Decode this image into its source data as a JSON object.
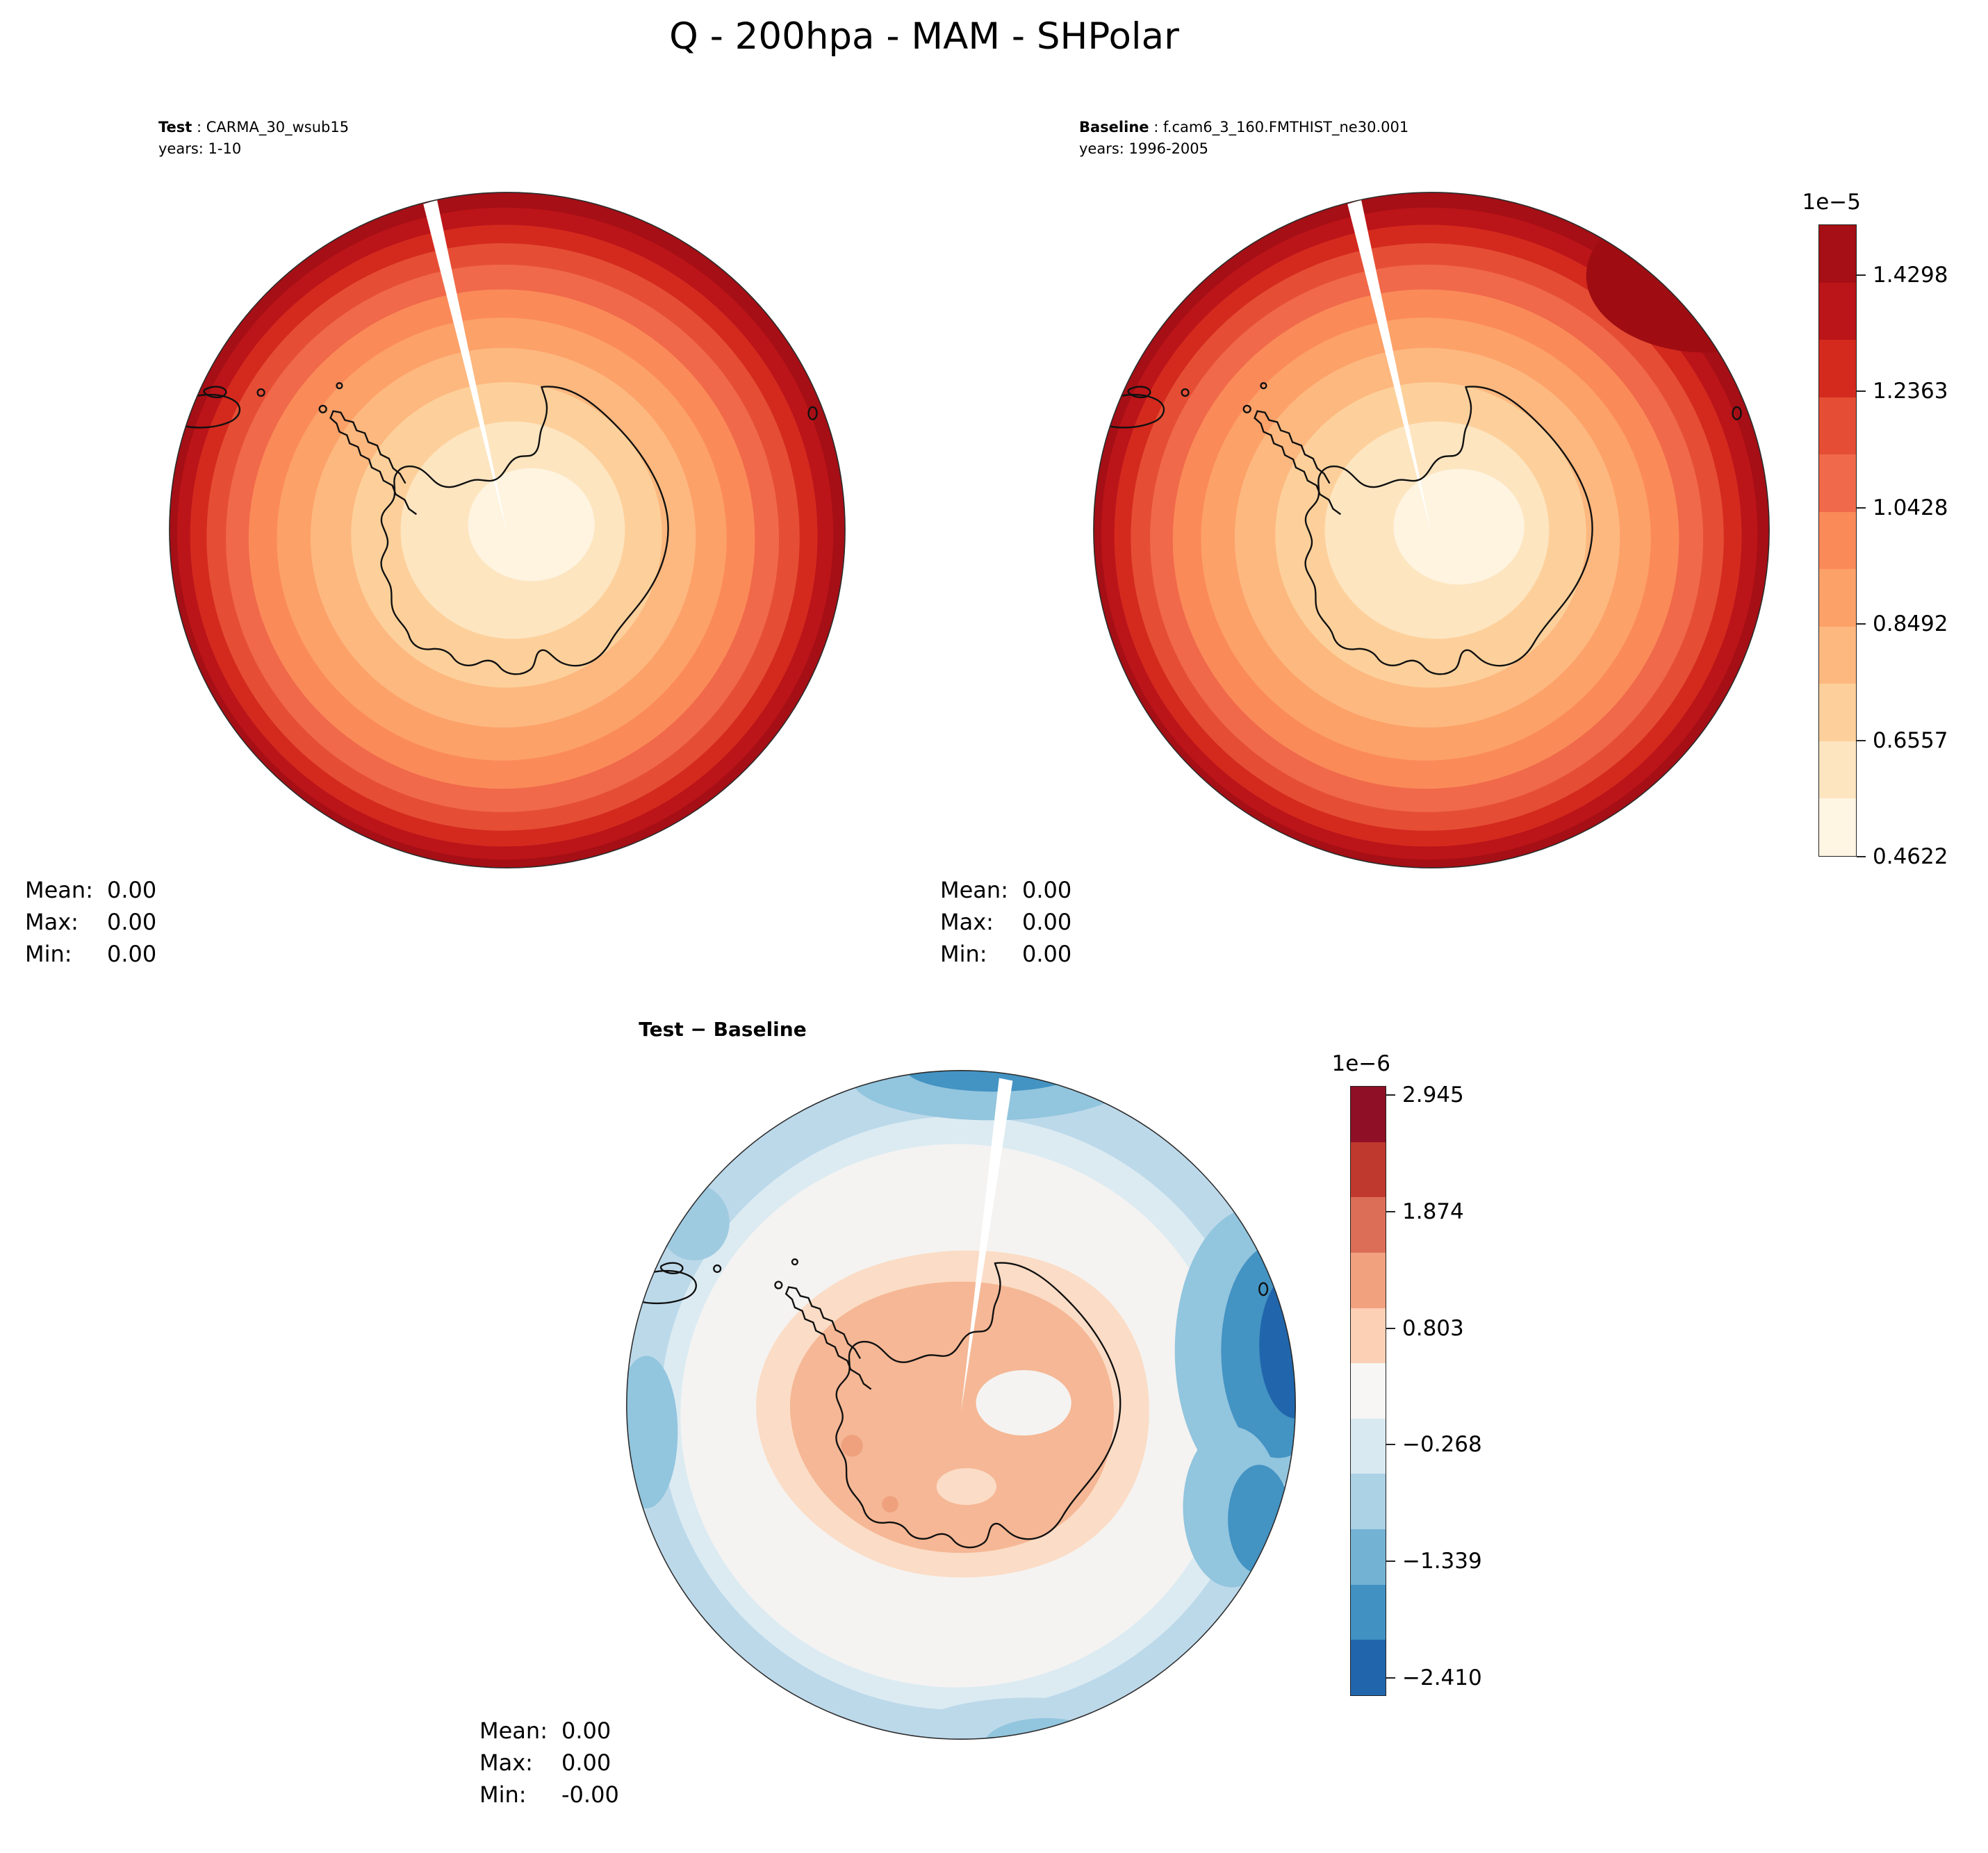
{
  "suptitle": "Q - 200hpa - MAM - SHPolar",
  "panels": {
    "test": {
      "name": "Test",
      "case": " : CARMA_30_wsub15",
      "years": "years: 1-10",
      "stats": [
        [
          "Mean:",
          "0.00"
        ],
        [
          "Max:",
          "0.00"
        ],
        [
          "Min:",
          "0.00"
        ]
      ]
    },
    "baseline": {
      "name": "Baseline",
      "case": " : f.cam6_3_160.FMTHIST_ne30.001",
      "years": "years: 1996-2005",
      "stats": [
        [
          "Mean:",
          "0.00"
        ],
        [
          "Max:",
          "0.00"
        ],
        [
          "Min:",
          "0.00"
        ]
      ]
    },
    "diff": {
      "title": "Test − Baseline",
      "stats": [
        [
          "Mean:",
          "0.00"
        ],
        [
          "Max:",
          "0.00"
        ],
        [
          "Min:",
          "-0.00"
        ]
      ]
    }
  },
  "colorbars": {
    "main": {
      "exponent": "1e−5",
      "ticks": [
        "1.4298",
        "1.2363",
        "1.0428",
        "0.8492",
        "0.6557",
        "0.4622"
      ],
      "tick_fractions_from_top": [
        0.08,
        0.264,
        0.448,
        0.632,
        0.816,
        1.0
      ],
      "colors_top_to_bottom": [
        "#a50f15",
        "#bb1419",
        "#d42a1e",
        "#e54e35",
        "#f0694a",
        "#fb8a59",
        "#fca168",
        "#fdb87f",
        "#fdd09b",
        "#fde5c0",
        "#fff5e3"
      ]
    },
    "diff": {
      "exponent": "1e−6",
      "ticks": [
        "2.945",
        "1.874",
        "0.803",
        "−0.268",
        "−1.339",
        "−2.410"
      ],
      "tick_fractions_from_top": [
        0.015,
        0.206,
        0.397,
        0.588,
        0.779,
        0.97
      ],
      "colors_top_to_bottom": [
        "#8f0f26",
        "#c0392f",
        "#dc6e57",
        "#f2a17f",
        "#fbd0b5",
        "#f7f6f4",
        "#d9e9f1",
        "#acd2e5",
        "#74b2d4",
        "#4191c2",
        "#2166ac"
      ]
    }
  },
  "chart_data": {
    "type": "heatmap",
    "subtype": "south-polar stereographic filled-contour maps: two model cases plus their difference",
    "title": "Q - 200hpa - MAM - SHPolar",
    "variable": "Q",
    "pressure_level": "200hpa",
    "season": "MAM",
    "region": "SHPolar",
    "panels": [
      {
        "label": "Test",
        "case": "CARMA_30_wsub15",
        "years": "1-10",
        "units_scale": "1e-5",
        "colormap": "OrRd (cream at pole to dark red at outer latitudes)",
        "colorbar_ticks": [
          1.4298,
          1.2363,
          1.0428,
          0.8492,
          0.6557,
          0.4622
        ],
        "mean": "0.00",
        "max": "0.00",
        "min": "0.00",
        "pattern": "lowest values (~0.46e-5) over the pole/Antarctic interior, increasing radially in concentric bands to ~1.43e-5 at the map edge"
      },
      {
        "label": "Baseline",
        "case": "f.cam6_3_160.FMTHIST_ne30.001",
        "years": "1996-2005",
        "units_scale": "1e-5",
        "colormap": "OrRd",
        "colorbar_ticks": [
          1.4298,
          1.2363,
          1.0428,
          0.8492,
          0.6557,
          0.4622
        ],
        "mean": "0.00",
        "max": "0.00",
        "min": "0.00",
        "pattern": "same radial gradient; darkest red band at the outer edge, thickest in the upper-right sector"
      },
      {
        "label": "Test − Baseline",
        "units_scale": "1e-6",
        "colormap": "RdBu_r (blue negative, red positive)",
        "colorbar_ticks": [
          2.945,
          1.874,
          0.803,
          -0.268,
          -1.339,
          -2.41
        ],
        "mean": "0.00",
        "max": "0.00",
        "min": "-0.00",
        "pattern": "weak positive (salmon ~+1e-6) anomaly over the pole and Antarctica, surrounded by a near-zero white ring and negative blue band at the domain edge, strongest (~-2.4e-6) along the eastern edge"
      }
    ]
  }
}
